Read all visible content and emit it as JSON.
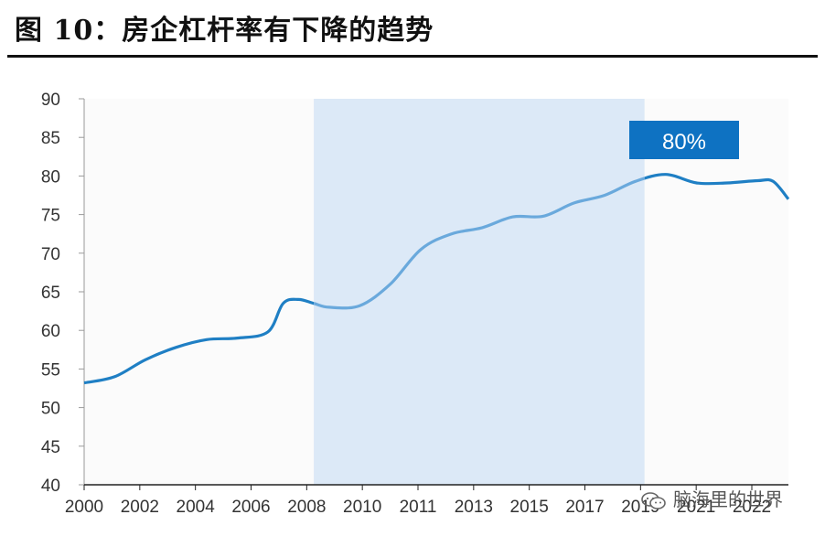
{
  "header": {
    "title": "图 10：房企杠杆率有下降的趋势"
  },
  "watermark": {
    "text": "脑海里的世界",
    "icon": "wechat-icon"
  },
  "chart_data": {
    "type": "line",
    "x_tick_labels": [
      "2000",
      "2002",
      "2004",
      "2006",
      "2008",
      "2010",
      "2011",
      "2013",
      "2015",
      "2017",
      "2019",
      "2021",
      "2022"
    ],
    "ylim": [
      40,
      90
    ],
    "y_ticks": [
      40,
      45,
      50,
      55,
      60,
      65,
      70,
      75,
      80,
      85,
      90
    ],
    "xlim": [
      2000,
      2023
    ],
    "shaded_region": [
      2007.5,
      2018.3
    ],
    "annotation": {
      "label": "80%"
    },
    "series": [
      {
        "color": "#1f7fc4",
        "highlight_color": "#6aa9dc",
        "points": [
          [
            2000,
            53.2
          ],
          [
            2001,
            54.0
          ],
          [
            2002,
            56.2
          ],
          [
            2003,
            57.8
          ],
          [
            2004,
            58.8
          ],
          [
            2005,
            59.0
          ],
          [
            2006,
            59.8
          ],
          [
            2006.5,
            63.5
          ],
          [
            2007,
            64.0
          ],
          [
            2007.5,
            63.5
          ],
          [
            2008,
            63.0
          ],
          [
            2009,
            63.2
          ],
          [
            2010,
            66.0
          ],
          [
            2011,
            70.5
          ],
          [
            2012,
            72.5
          ],
          [
            2013,
            73.3
          ],
          [
            2014,
            74.7
          ],
          [
            2015,
            74.8
          ],
          [
            2016,
            76.5
          ],
          [
            2017,
            77.5
          ],
          [
            2018,
            79.3
          ],
          [
            2019,
            80.2
          ],
          [
            2020,
            79.1
          ],
          [
            2021,
            79.1
          ],
          [
            2022,
            79.4
          ],
          [
            2022.5,
            79.3
          ],
          [
            2023,
            77.0
          ]
        ]
      }
    ],
    "colors": {
      "shade": "#dce9f7",
      "plot_bg": "#fbfbfb",
      "label_box": "#0e72c2"
    }
  }
}
